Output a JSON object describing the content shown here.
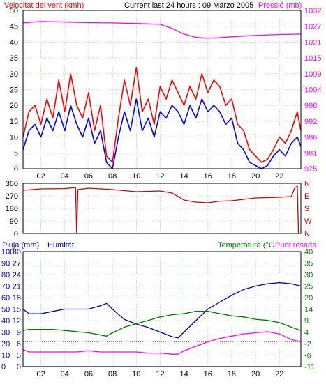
{
  "header": {
    "wind_label": "Velocitat del vent (kmh)",
    "current_label": "Current last 24 hours : 09 Marzo 2005",
    "pressure_label": "Pressió (mb)"
  },
  "panel3_header": {
    "rain_label": "Pluja (mm)",
    "humidity_label": "Humitat",
    "temperature_label": "Temperatura (°C",
    "dewpoint_label": "Punt rosada"
  },
  "colors": {
    "frame": "#000000",
    "grid": "#9bbf9b",
    "wind_gust": "#ff0000",
    "wind_avg": "#0000ff",
    "pressure": "#ff00ff",
    "direction": "#cc0000",
    "humidity": "#0000aa",
    "temperature": "#007700",
    "dewpoint": "#ff00ff",
    "rain": "#0000ff",
    "temp_axis": "#008000",
    "zero_line": "#cc0000"
  },
  "icons": {
    "logo": "none"
  },
  "chart_data": [
    {
      "type": "line",
      "title": "",
      "x_ticks": [
        "02",
        "04",
        "06",
        "08",
        "10",
        "12",
        "14",
        "16",
        "18",
        "20",
        "22"
      ],
      "xlim": [
        0.5,
        23.8
      ],
      "y_left_ticks": [
        "0",
        "5",
        "10",
        "15",
        "20",
        "25",
        "30",
        "35",
        "40",
        "45",
        "50"
      ],
      "ylim_left": [
        0,
        50
      ],
      "y_right_ticks": [
        "975",
        "981",
        "986",
        "992",
        "998",
        "1004",
        "1009",
        "1015",
        "1021",
        "1027",
        "1032"
      ],
      "ylim_right": [
        975,
        1032
      ],
      "grid": true,
      "series": [
        {
          "name": "Velocitat del vent (kmh)",
          "role": "wind_gust",
          "axis": "left",
          "x": [
            0.5,
            1.0,
            1.5,
            2.0,
            2.5,
            3.0,
            3.5,
            4.0,
            4.5,
            5.0,
            5.5,
            6.0,
            6.5,
            7.0,
            7.5,
            8.0,
            8.5,
            9.0,
            9.5,
            10.0,
            10.5,
            11.0,
            11.5,
            12.0,
            12.5,
            13.0,
            13.5,
            14.0,
            14.5,
            15.0,
            15.5,
            16.0,
            16.5,
            17.0,
            17.5,
            18.0,
            18.5,
            19.0,
            19.5,
            20.0,
            20.5,
            21.0,
            21.5,
            22.0,
            22.5,
            23.0,
            23.5,
            23.8
          ],
          "values": [
            10,
            18,
            20,
            14,
            22,
            16,
            28,
            18,
            30,
            20,
            16,
            24,
            12,
            20,
            4,
            2,
            16,
            28,
            20,
            32,
            18,
            22,
            14,
            26,
            22,
            28,
            24,
            20,
            26,
            22,
            30,
            24,
            28,
            26,
            20,
            22,
            14,
            12,
            6,
            4,
            2,
            3,
            6,
            10,
            8,
            12,
            18,
            12
          ]
        },
        {
          "name": "",
          "role": "wind_avg",
          "axis": "left",
          "x": [
            0.5,
            1.0,
            1.5,
            2.0,
            2.5,
            3.0,
            3.5,
            4.0,
            4.5,
            5.0,
            5.5,
            6.0,
            6.5,
            7.0,
            7.5,
            8.0,
            8.5,
            9.0,
            9.5,
            10.0,
            10.5,
            11.0,
            11.5,
            12.0,
            12.5,
            13.0,
            13.5,
            14.0,
            14.5,
            15.0,
            15.5,
            16.0,
            16.5,
            17.0,
            17.5,
            18.0,
            18.5,
            19.0,
            19.5,
            20.0,
            20.5,
            21.0,
            21.5,
            22.0,
            22.5,
            23.0,
            23.5,
            23.8
          ],
          "values": [
            6,
            12,
            14,
            10,
            16,
            12,
            18,
            12,
            20,
            14,
            10,
            16,
            8,
            12,
            2,
            0,
            10,
            18,
            12,
            22,
            12,
            16,
            10,
            18,
            16,
            20,
            18,
            14,
            20,
            16,
            22,
            18,
            20,
            18,
            14,
            16,
            8,
            6,
            2,
            1,
            0,
            1,
            4,
            6,
            4,
            8,
            10,
            7
          ]
        },
        {
          "name": "Pressió (mb)",
          "role": "pressure",
          "axis": "right",
          "x": [
            0.5,
            2,
            4,
            6,
            8,
            10,
            12,
            13,
            14,
            15,
            16,
            17,
            18,
            20,
            22,
            23.8
          ],
          "values": [
            1027.5,
            1028.0,
            1027.8,
            1027.6,
            1027.5,
            1027.3,
            1027.0,
            1025.5,
            1023.5,
            1022.3,
            1022.0,
            1022.2,
            1022.5,
            1023.0,
            1023.3,
            1023.5
          ]
        }
      ]
    },
    {
      "type": "line",
      "title": "",
      "x_ticks": [
        "02",
        "04",
        "06",
        "08",
        "10",
        "12",
        "14",
        "16",
        "18",
        "20",
        "22"
      ],
      "xlim": [
        0.5,
        23.8
      ],
      "y_left_ticks": [
        "0",
        "90",
        "180",
        "270",
        "360"
      ],
      "ylim_left": [
        0,
        360
      ],
      "y_right_ticks": [
        "N",
        "W",
        "S",
        "E",
        "N"
      ],
      "grid": true,
      "series": [
        {
          "name": "",
          "role": "direction",
          "x": [
            0.5,
            2,
            4,
            4.9,
            5.0,
            5.1,
            6,
            8,
            10,
            12,
            13,
            14,
            15,
            16,
            17,
            18,
            20,
            22,
            23.0,
            23.3,
            23.5,
            23.6,
            23.7
          ],
          "values": [
            310,
            320,
            322,
            330,
            0,
            315,
            325,
            315,
            300,
            305,
            290,
            240,
            225,
            220,
            232,
            235,
            255,
            260,
            265,
            330,
            340,
            0,
            5
          ]
        }
      ]
    },
    {
      "type": "line",
      "title": "",
      "x_ticks": [
        "02",
        "04",
        "06",
        "08",
        "10",
        "12",
        "14",
        "16",
        "18",
        "20",
        "22"
      ],
      "xlim": [
        0.5,
        23.8
      ],
      "y_left_ticks": [
        "0",
        "10",
        "20",
        "30",
        "40",
        "50",
        "60",
        "70",
        "80",
        "90",
        "100"
      ],
      "ylim_left": [
        0,
        100
      ],
      "y_left2_ticks": [
        "0",
        "3",
        "6",
        "9",
        "12",
        "15",
        "18",
        "21",
        "24",
        "27",
        "30"
      ],
      "ylim_left2": [
        0,
        30
      ],
      "y_right_ticks": [
        "-11",
        "-6",
        "-2",
        "4",
        "9",
        "14",
        "20",
        "25",
        "30",
        "35",
        "40"
      ],
      "ylim_right": [
        -11,
        40
      ],
      "grid": true,
      "series": [
        {
          "name": "Humitat",
          "role": "humidity",
          "axis": "left",
          "x": [
            0.5,
            1,
            2,
            3,
            4,
            5,
            6,
            7,
            7.5,
            8,
            9,
            10,
            11,
            12,
            13,
            13.5,
            14,
            15,
            16,
            17,
            18,
            19,
            20,
            21,
            22,
            23,
            23.8
          ],
          "values": [
            50,
            46,
            46,
            48,
            50,
            50,
            50,
            53,
            55,
            50,
            41,
            37,
            34,
            30,
            26,
            25,
            30,
            40,
            50,
            56,
            62,
            67,
            70,
            72,
            73,
            72,
            70
          ]
        },
        {
          "name": "Temperatura (°C",
          "role": "temperature",
          "axis": "right",
          "x": [
            0.5,
            1,
            2,
            3,
            4,
            5,
            6,
            7,
            7.5,
            8,
            9,
            10,
            11,
            12,
            13,
            14,
            15,
            16,
            17,
            18,
            19,
            20,
            21,
            22,
            23,
            23.8
          ],
          "values": [
            5.0,
            5.5,
            5.5,
            5.5,
            5.0,
            4.5,
            4.0,
            3.0,
            2.5,
            4.0,
            6.5,
            8.0,
            9.5,
            11.0,
            12.0,
            12.5,
            13.5,
            13.5,
            12.5,
            11.5,
            11.0,
            10.0,
            9.5,
            8.5,
            6.5,
            5.0
          ]
        },
        {
          "name": "Punt rosada",
          "role": "dewpoint",
          "axis": "right",
          "x": [
            0.5,
            1,
            2,
            3,
            4,
            5,
            6,
            7,
            8,
            9,
            10,
            11,
            12,
            13,
            13.5,
            14,
            15,
            16,
            17,
            18,
            19,
            20,
            21,
            22,
            23,
            23.8
          ],
          "values": [
            -3.5,
            -4.5,
            -4.5,
            -4.5,
            -4.5,
            -4.5,
            -4.0,
            -4.5,
            -4.5,
            -4.5,
            -4.5,
            -5.0,
            -5.0,
            -5.5,
            -5.5,
            -4.0,
            -2.0,
            0.0,
            1.5,
            2.5,
            3.5,
            4.0,
            4.5,
            3.5,
            1.0,
            0.0
          ]
        },
        {
          "name": "Pluja (mm)",
          "role": "rain",
          "axis": "left2",
          "x": [
            0.5,
            23.8
          ],
          "values": [
            0,
            0
          ]
        }
      ]
    }
  ]
}
